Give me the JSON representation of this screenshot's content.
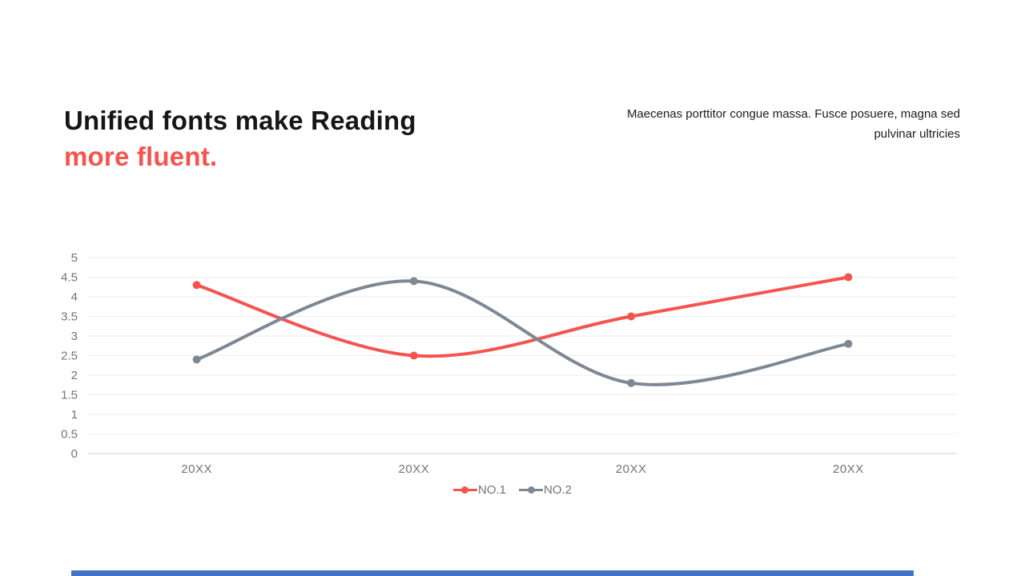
{
  "slide": {
    "title": {
      "line1": "Unified fonts make Reading",
      "line2": "more fluent."
    },
    "paragraph": "Maecenas porttitor congue massa. Fusce posuere, magna sed pulvinar ultricies",
    "accent_color": "#f5534e",
    "bottom_bar_color": "#4472c4"
  },
  "chart_data": {
    "type": "line",
    "title": "",
    "xlabel": "",
    "ylabel": "",
    "categories": [
      "20XX",
      "20XX",
      "20XX",
      "20XX"
    ],
    "series": [
      {
        "name": "NO.1",
        "color": "#f5534e",
        "values": [
          4.3,
          2.5,
          3.5,
          4.5
        ]
      },
      {
        "name": "NO.2",
        "color": "#7d8894",
        "values": [
          2.4,
          4.4,
          1.8,
          2.8
        ]
      }
    ],
    "ylim": [
      0,
      5
    ],
    "ytick_step": 0.5,
    "yticks": [
      "0",
      "0.5",
      "1",
      "1.5",
      "2",
      "2.5",
      "3",
      "3.5",
      "4",
      "4.5",
      "5"
    ],
    "grid": "horizontal",
    "smooth": true,
    "legend_position": "bottom-center",
    "grid_color": "#ededf2",
    "axis_line_color": "#d2d2d8",
    "tick_label_color": "#6f737a"
  }
}
